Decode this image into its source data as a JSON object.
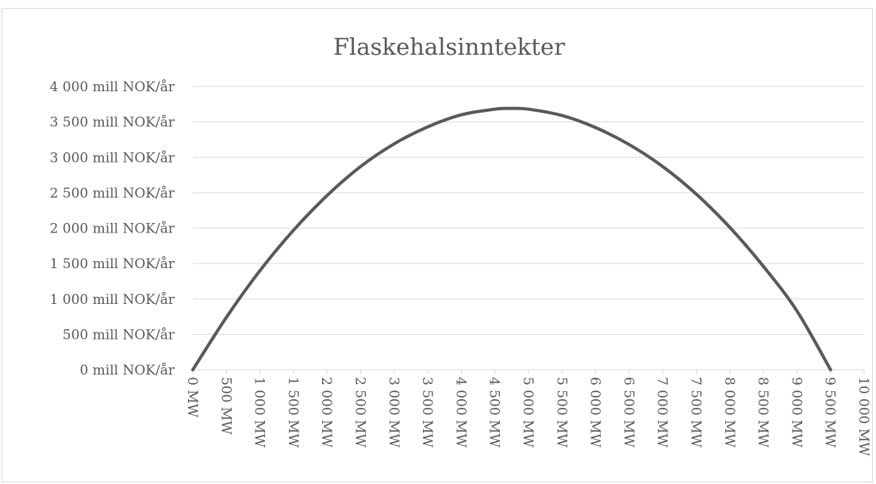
{
  "chart_data": {
    "type": "line",
    "title": "Flaskehalsinntekter",
    "xlabel": "",
    "ylabel": "",
    "xlim": [
      0,
      10000
    ],
    "ylim": [
      0,
      4000
    ],
    "grid": true,
    "x_ticks": [
      0,
      500,
      1000,
      1500,
      2000,
      2500,
      3000,
      3500,
      4000,
      4500,
      5000,
      5500,
      6000,
      6500,
      7000,
      7500,
      8000,
      8500,
      9000,
      9500,
      10000
    ],
    "x_tick_labels": [
      "0 MW",
      "500 MW",
      "1 000 MW",
      "1 500 MW",
      "2 000 MW",
      "2 500 MW",
      "3 000 MW",
      "3 500 MW",
      "4 000 MW",
      "4 500 MW",
      "5 000 MW",
      "5 500 MW",
      "6 000 MW",
      "6 500 MW",
      "7 000 MW",
      "7 500 MW",
      "8 000 MW",
      "8 500 MW",
      "9 000 MW",
      "9 500 MW",
      "10 000 MW"
    ],
    "y_ticks": [
      0,
      500,
      1000,
      1500,
      2000,
      2500,
      3000,
      3500,
      4000
    ],
    "y_tick_labels": [
      "0 mill NOK/år",
      "500 mill NOK/år",
      "1 000 mill NOK/år",
      "1 500 mill NOK/år",
      "2 000 mill NOK/år",
      "2 500 mill NOK/år",
      "3 000 mill NOK/år",
      "3 500 mill NOK/år",
      "4 000 mill NOK/år"
    ],
    "series": [
      {
        "x": [
          0,
          500,
          1000,
          1500,
          2000,
          2500,
          3000,
          3500,
          4000,
          4500,
          4750,
          5000,
          5500,
          6000,
          6500,
          7000,
          7500,
          8000,
          8500,
          9000,
          9500
        ],
        "values": [
          0,
          740,
          1400,
          1970,
          2460,
          2870,
          3190,
          3430,
          3600,
          3680,
          3690,
          3680,
          3590,
          3420,
          3180,
          2870,
          2480,
          2010,
          1460,
          830,
          0
        ]
      }
    ],
    "colors": {
      "line": "#595959",
      "grid": "#d9d9d9",
      "text": "#595959"
    }
  }
}
